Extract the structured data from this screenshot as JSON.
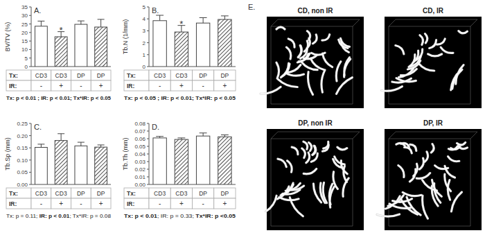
{
  "chart_data": [
    {
      "type": "bar",
      "title": "A.",
      "ylabel": "BV/TV (%)",
      "categories": [
        "CD3",
        "CD3",
        "DP",
        "DP"
      ],
      "category_label": "Tx:",
      "subcategories": [
        "-",
        "+",
        "-",
        "+"
      ],
      "subcategory_label": "IR:",
      "values": [
        23.7,
        17.5,
        24.8,
        23.2
      ],
      "errors": [
        3.0,
        3.0,
        2.0,
        4.5
      ],
      "ylim": [
        0,
        35
      ],
      "yticks": [
        0,
        5,
        10,
        15,
        20,
        25,
        30,
        35
      ],
      "grid": false,
      "annotations": [
        {
          "index": 1,
          "text": "*"
        }
      ],
      "stats": [
        {
          "text": "Tx: p < 0.01",
          "bold": true
        },
        {
          "text": " ; ",
          "bold": true
        },
        {
          "text": "IR: p < 0.01",
          "bold": true
        },
        {
          "text": "; ",
          "bold": true
        },
        {
          "text": "Tx*IR: p < 0.05",
          "bold": true
        }
      ]
    },
    {
      "type": "bar",
      "title": "B.",
      "ylabel": "Tb.N (1/mm)",
      "categories": [
        "CD3",
        "CD3",
        "DP",
        "DP"
      ],
      "category_label": "Tx:",
      "subcategories": [
        "-",
        "+",
        "-",
        "+"
      ],
      "subcategory_label": "IR:",
      "values": [
        3.85,
        2.9,
        3.65,
        3.95
      ],
      "errors": [
        0.45,
        0.55,
        0.45,
        0.3
      ],
      "ylim": [
        0,
        5
      ],
      "yticks": [
        0,
        1,
        2,
        3,
        4,
        5
      ],
      "grid": false,
      "annotations": [
        {
          "index": 1,
          "text": "*"
        }
      ],
      "stats": [
        {
          "text": "Tx: p < 0.05",
          "bold": true
        },
        {
          "text": " ; ",
          "bold": true
        },
        {
          "text": "IR: p < 0.01",
          "bold": true
        },
        {
          "text": "; ",
          "bold": true
        },
        {
          "text": "Tx*IR: p < 0.05",
          "bold": true
        }
      ]
    },
    {
      "type": "bar",
      "title": "C.",
      "ylabel": "Tb.Sp (mm)",
      "categories": [
        "CD3",
        "CD3",
        "DP",
        "DP"
      ],
      "category_label": "Tx:",
      "subcategories": [
        "-",
        "+",
        "-",
        "+"
      ],
      "subcategory_label": "IR:",
      "values": [
        0.152,
        0.18,
        0.158,
        0.153
      ],
      "errors": [
        0.013,
        0.028,
        0.015,
        0.009
      ],
      "ylim": [
        0,
        0.25
      ],
      "yticks": [
        {
          "value": 0,
          "label": "0.00"
        },
        {
          "value": 0.05,
          "label": "0.05"
        },
        {
          "value": 0.1,
          "label": "0.10"
        },
        {
          "value": 0.15,
          "label": "0.15"
        },
        {
          "value": 0.2,
          "label": "0.20"
        },
        {
          "value": 0.25,
          "label": "0.25"
        }
      ],
      "grid": false,
      "stats": [
        {
          "text": "Tx: p = 0.11; ",
          "bold": false
        },
        {
          "text": "IR: p < 0.01",
          "bold": true
        },
        {
          "text": "; Tx*IR: p = 0.08",
          "bold": false
        }
      ]
    },
    {
      "type": "bar",
      "title": "D.",
      "ylabel": "Tb.Th (mm)",
      "categories": [
        "CD3",
        "CD3",
        "DP",
        "DP"
      ],
      "category_label": "Tx:",
      "subcategories": [
        "-",
        "+",
        "-",
        "+"
      ],
      "subcategory_label": "IR:",
      "values": [
        0.061,
        0.059,
        0.0635,
        0.0625
      ],
      "errors": [
        0.002,
        0.002,
        0.004,
        0.0025
      ],
      "ylim": [
        0,
        0.08
      ],
      "yticks": [
        {
          "value": 0,
          "label": "0.00"
        },
        {
          "value": 0.01,
          "label": "0.01"
        },
        {
          "value": 0.02,
          "label": "0.02"
        },
        {
          "value": 0.03,
          "label": "0.03"
        },
        {
          "value": 0.04,
          "label": "0.04"
        },
        {
          "value": 0.05,
          "label": "0.05"
        },
        {
          "value": 0.06,
          "label": "0.06"
        },
        {
          "value": 0.07,
          "label": "0.07"
        },
        {
          "value": 0.08,
          "label": "0.08"
        }
      ],
      "grid": false,
      "stats": [
        {
          "text": "Tx: p < 0.01",
          "bold": true
        },
        {
          "text": "; IR: p = 0.33; ",
          "bold": false
        },
        {
          "text": "Tx*IR: p <0.05",
          "bold": true
        }
      ]
    }
  ],
  "image_panel": {
    "label": "E.",
    "images": [
      "CD, non IR",
      "CD, IR",
      "DP, non IR",
      "DP, IR"
    ]
  }
}
